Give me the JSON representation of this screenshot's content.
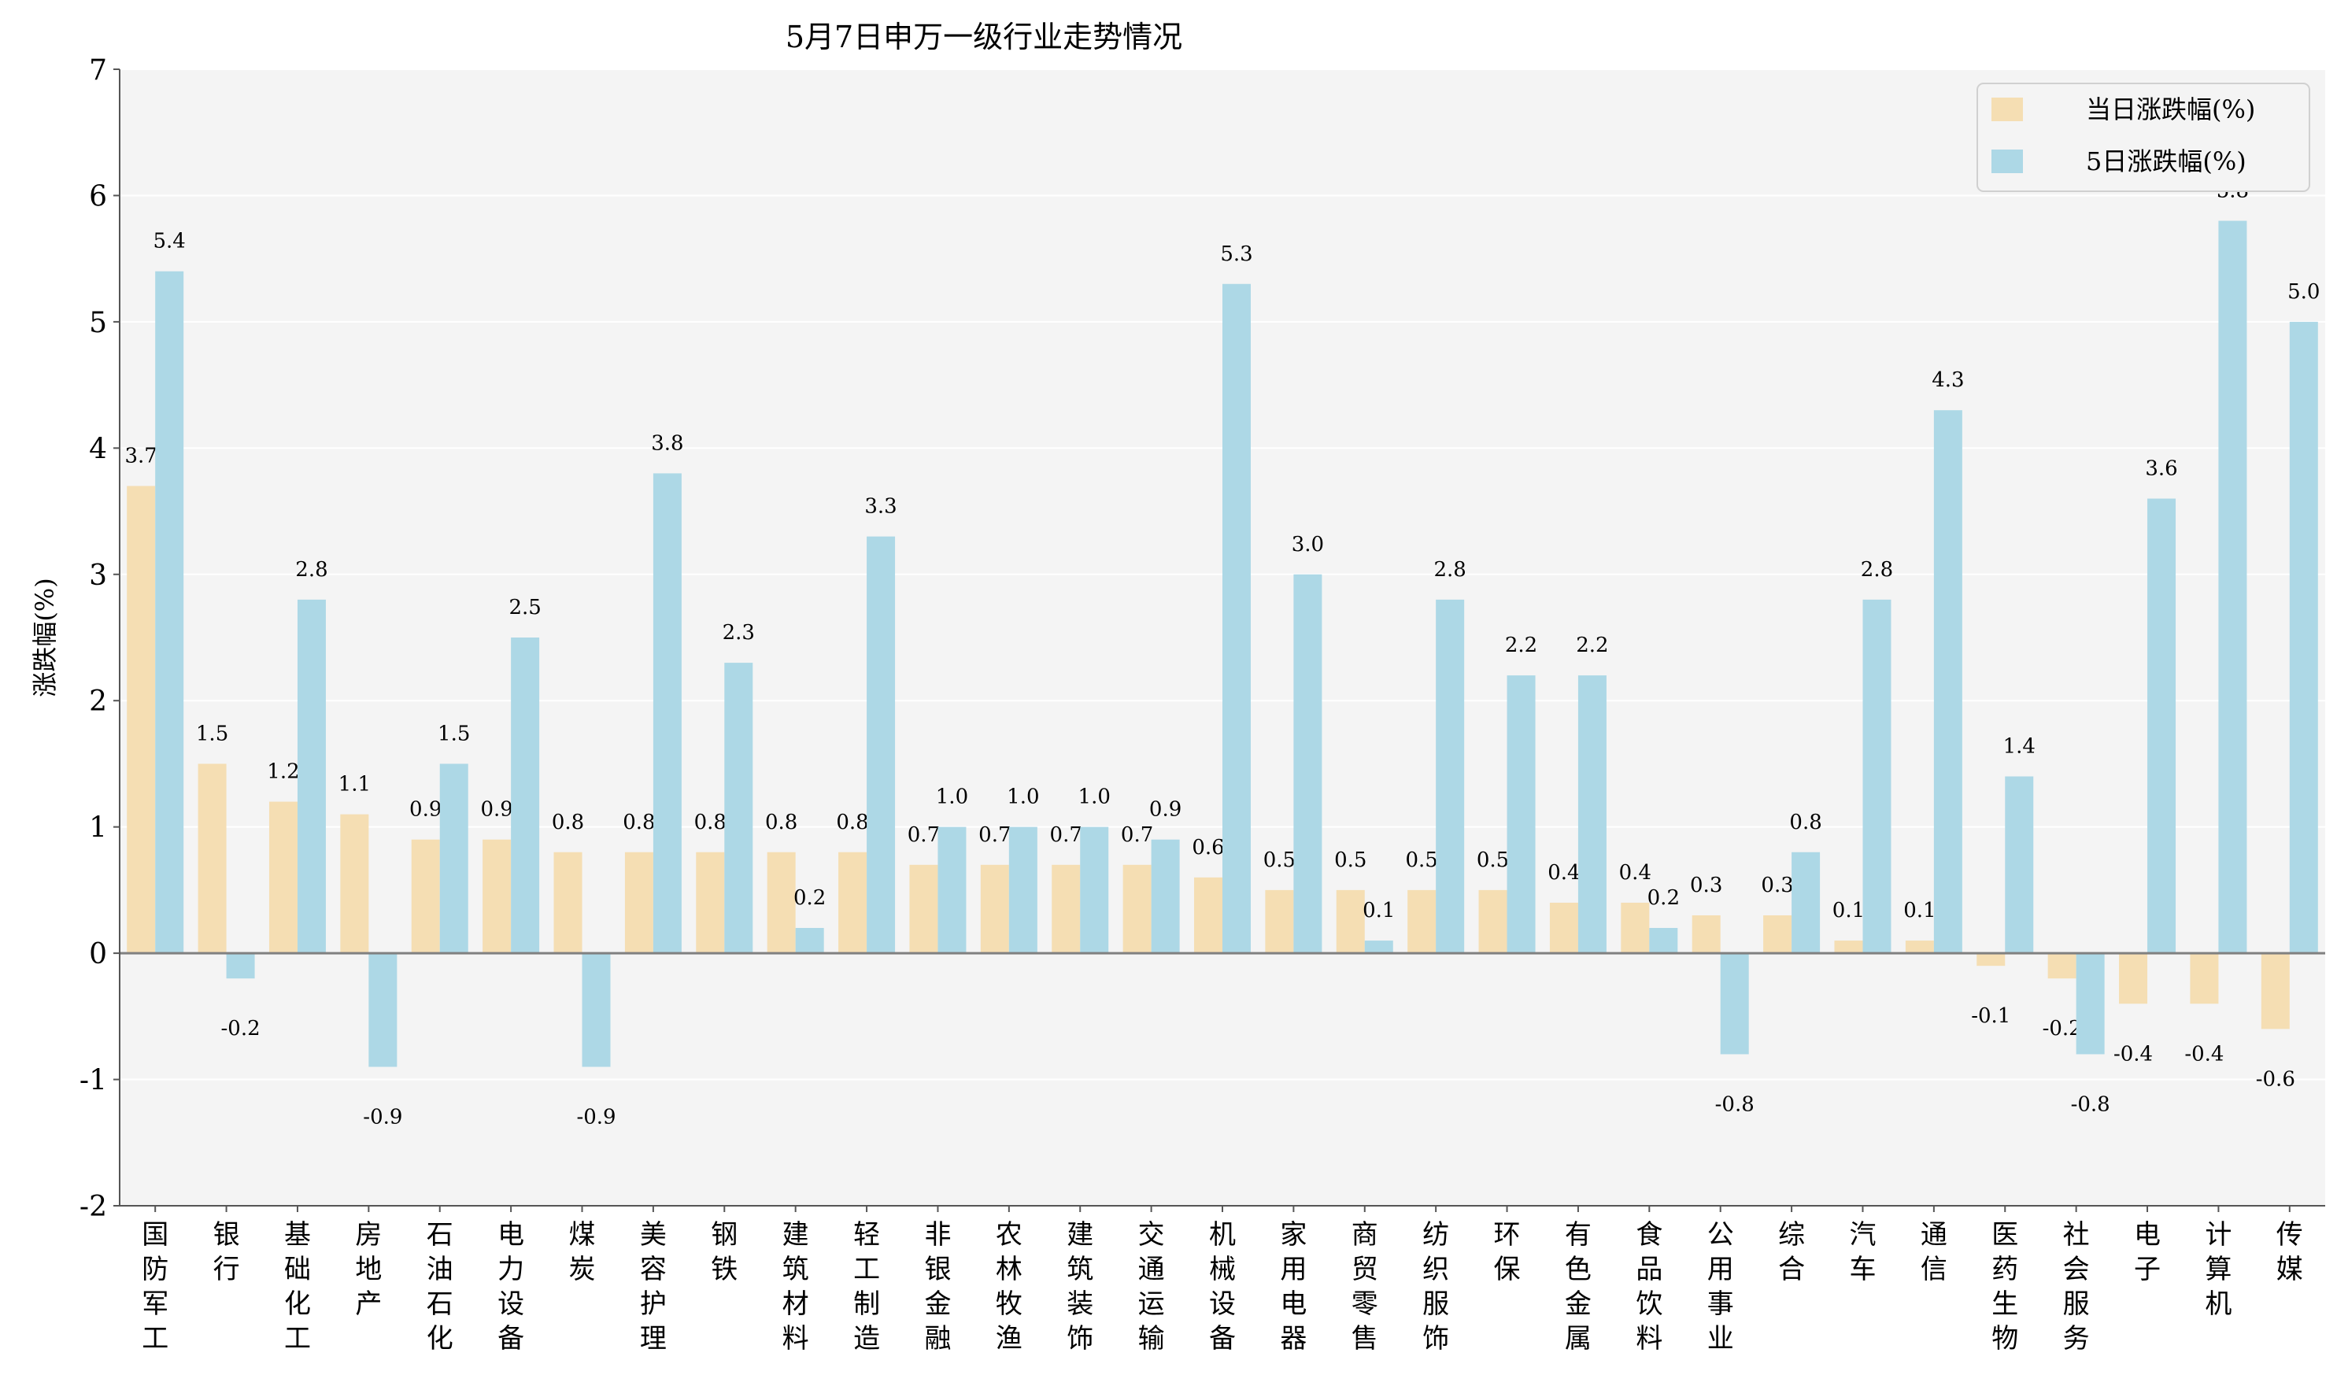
{
  "chart_data": {
    "type": "bar",
    "title": "5月7日申万一级行业走势情况",
    "xlabel": "",
    "ylabel": "涨跌幅(%)",
    "ylim": [
      -2,
      7
    ],
    "yticks": [
      -2,
      -1,
      0,
      1,
      2,
      3,
      4,
      5,
      6,
      7
    ],
    "grid": true,
    "legend_position": "top-right",
    "categories": [
      "国防军工",
      "银行",
      "基础化工",
      "房地产",
      "石油石化",
      "电力设备",
      "煤炭",
      "美容护理",
      "钢铁",
      "建筑材料",
      "轻工制造",
      "非银金融",
      "农林牧渔",
      "建筑装饰",
      "交通运输",
      "机械设备",
      "家用电器",
      "商贸零售",
      "纺织服饰",
      "环保",
      "有色金属",
      "食品饮料",
      "公用事业",
      "综合",
      "汽车",
      "通信",
      "医药生物",
      "社会服务",
      "电子",
      "计算机",
      "传媒"
    ],
    "series": [
      {
        "name": "当日涨跌幅(%)",
        "color": "#f5deb3",
        "values": [
          3.7,
          1.5,
          1.2,
          1.1,
          0.9,
          0.9,
          0.8,
          0.8,
          0.8,
          0.8,
          0.8,
          0.7,
          0.7,
          0.7,
          0.7,
          0.6,
          0.5,
          0.5,
          0.5,
          0.5,
          0.4,
          0.4,
          0.3,
          0.3,
          0.1,
          0.1,
          -0.1,
          -0.2,
          -0.4,
          -0.4,
          -0.6
        ]
      },
      {
        "name": "5日涨跌幅(%)",
        "color": "#add8e6",
        "values": [
          5.4,
          -0.2,
          2.8,
          -0.9,
          1.5,
          2.5,
          -0.9,
          3.8,
          2.3,
          0.2,
          3.3,
          1.0,
          1.0,
          1.0,
          0.9,
          5.3,
          3.0,
          0.1,
          2.8,
          2.2,
          2.2,
          0.2,
          -0.8,
          0.8,
          2.8,
          4.3,
          1.4,
          -0.8,
          3.6,
          5.8,
          5.0
        ]
      }
    ],
    "colors": {
      "plot_background": "#f4f4f4",
      "grid": "#ffffff",
      "zero_line": "#808080"
    }
  }
}
